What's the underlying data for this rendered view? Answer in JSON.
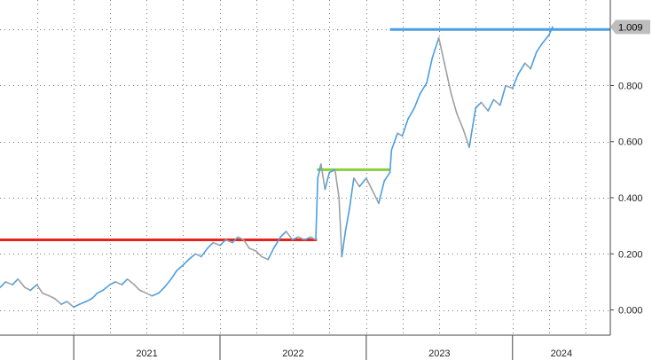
{
  "chart_data": {
    "type": "line",
    "grid": true,
    "x_tick_labels": [
      "2021",
      "2022",
      "2023",
      "2024"
    ],
    "x_range": [
      "2020-07-01",
      "2024-09-01"
    ],
    "year_boundaries": [
      "2021-01-01",
      "2022-01-01",
      "2023-01-01",
      "2024-01-01"
    ],
    "y_ticks": [
      0.0,
      0.2,
      0.4,
      0.6,
      0.8
    ],
    "y_tick_labels": [
      "0.000",
      "0.200",
      "0.400",
      "0.600",
      "0.800"
    ],
    "ylim": [
      -0.09,
      1.105
    ],
    "last_value": 1.009,
    "last_value_label": "1.009",
    "colors": {
      "series_up": "#4a9ee3",
      "series_down": "#a0a0a0",
      "red_line": "#e8221b",
      "green_line": "#88d03a",
      "blue_line": "#4a9ee3",
      "label_box": "#bdbdbd"
    },
    "reference_lines": [
      {
        "color": "red",
        "value": 0.25,
        "x_start": "2020-07-01",
        "x_end": "2022-08-31"
      },
      {
        "color": "green",
        "value": 0.5,
        "x_start": "2022-08-31",
        "x_end": "2023-03-01"
      },
      {
        "color": "blue",
        "value": 1.0,
        "x_start": "2023-03-01",
        "x_end": "2024-09-01"
      }
    ],
    "series": [
      {
        "points": [
          [
            "2020-07-01",
            0.08
          ],
          [
            "2020-07-15",
            0.1
          ],
          [
            "2020-08-01",
            0.09
          ],
          [
            "2020-08-15",
            0.11
          ],
          [
            "2020-09-01",
            0.08
          ],
          [
            "2020-09-15",
            0.07
          ],
          [
            "2020-10-01",
            0.09
          ],
          [
            "2020-10-15",
            0.06
          ],
          [
            "2020-11-01",
            0.05
          ],
          [
            "2020-11-15",
            0.04
          ],
          [
            "2020-12-01",
            0.02
          ],
          [
            "2020-12-15",
            0.03
          ],
          [
            "2021-01-01",
            0.01
          ],
          [
            "2021-01-15",
            0.02
          ],
          [
            "2021-02-01",
            0.03
          ],
          [
            "2021-02-15",
            0.04
          ],
          [
            "2021-03-01",
            0.06
          ],
          [
            "2021-03-15",
            0.07
          ],
          [
            "2021-04-01",
            0.09
          ],
          [
            "2021-04-15",
            0.1
          ],
          [
            "2021-05-01",
            0.09
          ],
          [
            "2021-05-15",
            0.11
          ],
          [
            "2021-06-01",
            0.09
          ],
          [
            "2021-06-15",
            0.07
          ],
          [
            "2021-07-01",
            0.06
          ],
          [
            "2021-07-15",
            0.05
          ],
          [
            "2021-08-01",
            0.06
          ],
          [
            "2021-08-15",
            0.08
          ],
          [
            "2021-09-01",
            0.11
          ],
          [
            "2021-09-15",
            0.14
          ],
          [
            "2021-10-01",
            0.16
          ],
          [
            "2021-10-15",
            0.18
          ],
          [
            "2021-11-01",
            0.2
          ],
          [
            "2021-11-15",
            0.19
          ],
          [
            "2021-12-01",
            0.22
          ],
          [
            "2021-12-15",
            0.24
          ],
          [
            "2022-01-01",
            0.23
          ],
          [
            "2022-01-15",
            0.25
          ],
          [
            "2022-02-01",
            0.24
          ],
          [
            "2022-02-15",
            0.26
          ],
          [
            "2022-03-01",
            0.25
          ],
          [
            "2022-03-15",
            0.22
          ],
          [
            "2022-04-01",
            0.21
          ],
          [
            "2022-04-15",
            0.19
          ],
          [
            "2022-05-01",
            0.18
          ],
          [
            "2022-05-15",
            0.22
          ],
          [
            "2022-06-01",
            0.26
          ],
          [
            "2022-06-15",
            0.28
          ],
          [
            "2022-07-01",
            0.25
          ],
          [
            "2022-07-15",
            0.26
          ],
          [
            "2022-08-01",
            0.25
          ],
          [
            "2022-08-15",
            0.26
          ],
          [
            "2022-08-28",
            0.25
          ],
          [
            "2022-09-02",
            0.47
          ],
          [
            "2022-09-10",
            0.52
          ],
          [
            "2022-09-20",
            0.43
          ],
          [
            "2022-10-01",
            0.49
          ],
          [
            "2022-10-15",
            0.5
          ],
          [
            "2022-10-25",
            0.4
          ],
          [
            "2022-11-01",
            0.19
          ],
          [
            "2022-11-10",
            0.28
          ],
          [
            "2022-11-20",
            0.36
          ],
          [
            "2022-12-01",
            0.47
          ],
          [
            "2022-12-15",
            0.44
          ],
          [
            "2023-01-01",
            0.47
          ],
          [
            "2023-01-15",
            0.43
          ],
          [
            "2023-02-01",
            0.38
          ],
          [
            "2023-02-15",
            0.46
          ],
          [
            "2023-03-01",
            0.49
          ],
          [
            "2023-03-05",
            0.57
          ],
          [
            "2023-03-20",
            0.63
          ],
          [
            "2023-04-01",
            0.62
          ],
          [
            "2023-04-15",
            0.68
          ],
          [
            "2023-05-01",
            0.72
          ],
          [
            "2023-05-15",
            0.77
          ],
          [
            "2023-06-01",
            0.81
          ],
          [
            "2023-06-15",
            0.9
          ],
          [
            "2023-07-01",
            0.97
          ],
          [
            "2023-07-15",
            0.88
          ],
          [
            "2023-08-01",
            0.77
          ],
          [
            "2023-08-15",
            0.7
          ],
          [
            "2023-09-01",
            0.64
          ],
          [
            "2023-09-15",
            0.58
          ],
          [
            "2023-10-01",
            0.72
          ],
          [
            "2023-10-15",
            0.74
          ],
          [
            "2023-11-01",
            0.71
          ],
          [
            "2023-11-15",
            0.75
          ],
          [
            "2023-12-01",
            0.73
          ],
          [
            "2023-12-15",
            0.8
          ],
          [
            "2024-01-01",
            0.79
          ],
          [
            "2024-01-15",
            0.84
          ],
          [
            "2024-02-01",
            0.88
          ],
          [
            "2024-02-15",
            0.86
          ],
          [
            "2024-03-01",
            0.92
          ],
          [
            "2024-03-15",
            0.95
          ],
          [
            "2024-04-01",
            0.98
          ],
          [
            "2024-04-10",
            1.009
          ]
        ]
      }
    ]
  }
}
